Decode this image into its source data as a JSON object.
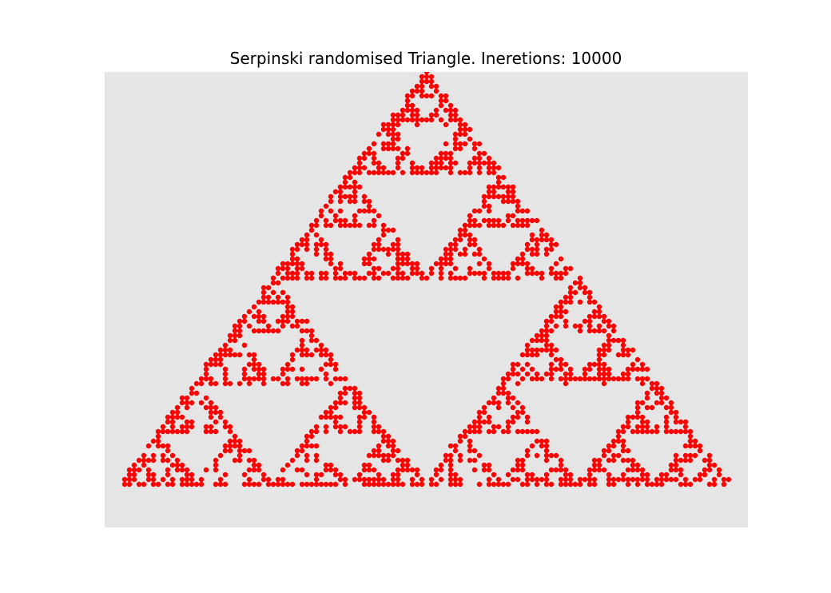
{
  "chart_data": {
    "type": "scatter",
    "title": "Serpinski randomised Triangle. Ineretions: 10000",
    "xlabel": "",
    "ylabel": "",
    "grid": false,
    "axes_visible": false,
    "plot_background": "#e5e5e5",
    "point_color": "#ff0000",
    "iterations": 10000,
    "generator": {
      "vertices": [
        [
          0,
          0
        ],
        [
          1,
          0
        ],
        [
          0.5,
          1
        ]
      ],
      "ratio": 0.5
    },
    "xlim": [
      0,
      1.05
    ],
    "ylim": [
      0,
      1.05
    ],
    "series": [
      {
        "points_drawn": 2600
      }
    ]
  }
}
